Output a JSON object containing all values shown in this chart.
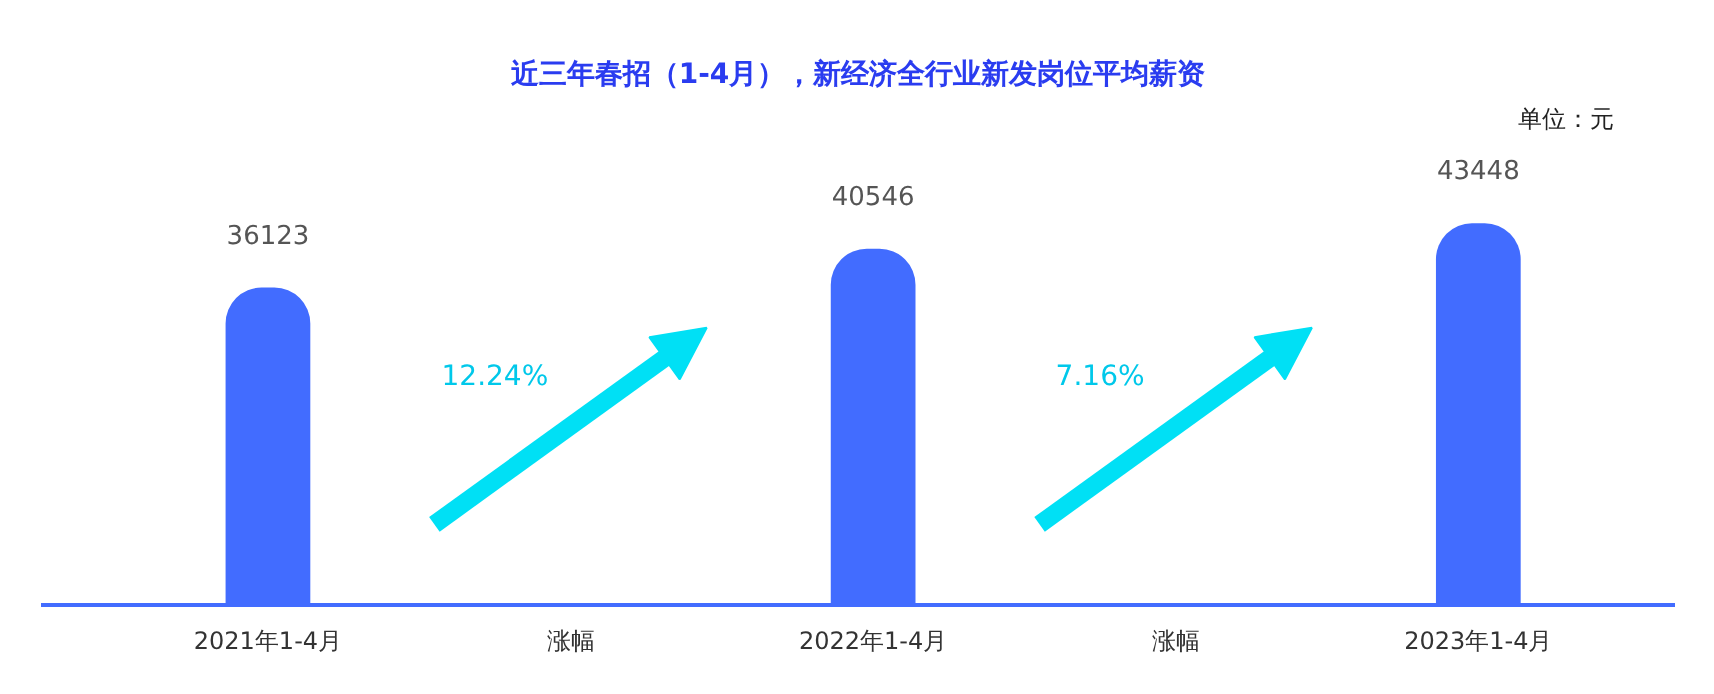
{
  "chart_data": {
    "type": "bar",
    "title": "近三年春招（1-4月），新经济全行业新发岗位平均薪资",
    "categories": [
      "2021年1-4月",
      "涨幅",
      "2022年1-4月",
      "涨幅",
      "2023年1-4月"
    ],
    "values": [
      36123,
      null,
      40546,
      null,
      43448
    ],
    "color": "#426cff",
    "data_labels": true,
    "grid": false,
    "annotations": [
      "单位：元",
      "12.24%",
      "7.16%"
    ]
  }
}
